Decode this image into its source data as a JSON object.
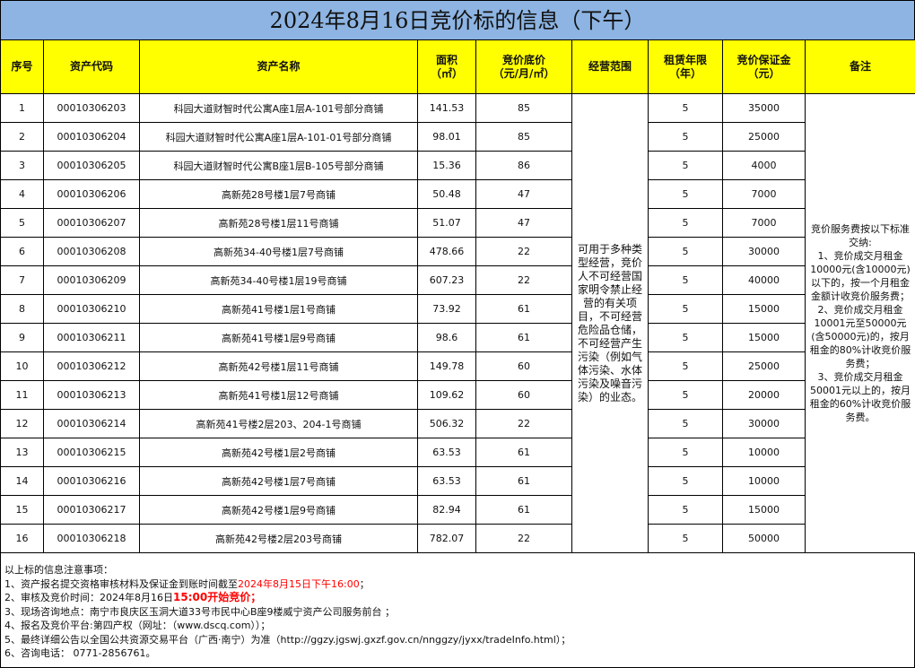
{
  "title": "2024年8月16日竞价标的信息（下午）",
  "headers": {
    "no": "序号",
    "code": "资产代码",
    "name": "资产名称",
    "area": "面积\n（㎡）",
    "price": "竞价底价\n（元/月/㎡）",
    "scope": "经营范围",
    "term": "租赁年限\n（年）",
    "deposit": "竞价保证金\n（元）",
    "remark": "备注"
  },
  "rows": [
    {
      "no": "1",
      "code": "00010306203",
      "name": "科园大道财智时代公寓A座1层A-101号部分商铺",
      "area": "141.53",
      "price": "85",
      "term": "5",
      "deposit": "35000"
    },
    {
      "no": "2",
      "code": "00010306204",
      "name": "科园大道财智时代公寓A座1层A-101-01号部分商铺",
      "area": "98.01",
      "price": "85",
      "term": "5",
      "deposit": "25000"
    },
    {
      "no": "3",
      "code": "00010306205",
      "name": "科园大道财智时代公寓B座1层B-105号部分商铺",
      "area": "15.36",
      "price": "86",
      "term": "5",
      "deposit": "4000"
    },
    {
      "no": "4",
      "code": "00010306206",
      "name": "高新苑28号楼1层7号商铺",
      "area": "50.48",
      "price": "47",
      "term": "5",
      "deposit": "7000"
    },
    {
      "no": "5",
      "code": "00010306207",
      "name": "高新苑28号楼1层11号商铺",
      "area": "51.07",
      "price": "47",
      "term": "5",
      "deposit": "7000"
    },
    {
      "no": "6",
      "code": "00010306208",
      "name": "高新苑34-40号楼1层7号商铺",
      "area": "478.66",
      "price": "22",
      "term": "5",
      "deposit": "30000"
    },
    {
      "no": "7",
      "code": "00010306209",
      "name": "高新苑34-40号楼1层19号商铺",
      "area": "607.23",
      "price": "22",
      "term": "5",
      "deposit": "40000"
    },
    {
      "no": "8",
      "code": "00010306210",
      "name": "高新苑41号楼1层1号商铺",
      "area": "73.92",
      "price": "61",
      "term": "5",
      "deposit": "15000"
    },
    {
      "no": "9",
      "code": "00010306211",
      "name": "高新苑41号楼1层9号商铺",
      "area": "98.6",
      "price": "61",
      "term": "5",
      "deposit": "15000"
    },
    {
      "no": "10",
      "code": "00010306212",
      "name": "高新苑42号楼1层11号商铺",
      "area": "149.78",
      "price": "60",
      "term": "5",
      "deposit": "25000"
    },
    {
      "no": "11",
      "code": "00010306213",
      "name": "高新苑41号楼1层12号商铺",
      "area": "109.62",
      "price": "60",
      "term": "5",
      "deposit": "20000"
    },
    {
      "no": "12",
      "code": "00010306214",
      "name": "高新苑41号楼2层203、204-1号商铺",
      "area": "506.32",
      "price": "22",
      "term": "5",
      "deposit": "30000"
    },
    {
      "no": "13",
      "code": "00010306215",
      "name": "高新苑42号楼1层2号商铺",
      "area": "63.53",
      "price": "61",
      "term": "5",
      "deposit": "10000"
    },
    {
      "no": "14",
      "code": "00010306216",
      "name": "高新苑42号楼1层7号商铺",
      "area": "63.53",
      "price": "61",
      "term": "5",
      "deposit": "10000"
    },
    {
      "no": "15",
      "code": "00010306217",
      "name": "高新苑42号楼1层9号商铺",
      "area": "82.94",
      "price": "61",
      "term": "5",
      "deposit": "15000"
    },
    {
      "no": "16",
      "code": "00010306218",
      "name": "高新苑42号楼2层203号商铺",
      "area": "782.07",
      "price": "22",
      "term": "5",
      "deposit": "50000"
    }
  ],
  "scope_text": "可用于多种类型经营，竞价人不可经营国家明令禁止经营的有关项目，不可经营危险品仓储，不可经营产生污染（例如气体污染、水体污染及噪音污染）的业态。",
  "remark_text": "竞价服务费按以下标准交纳:\n1、竞价成交月租金10000元(含10000元)以下的，按一个月租金金额计收竞价服务费；\n2、竞价成交月租金10001元至50000元(含50000元)的，按月租金的80%计收竞价服务费；\n3、竞价成交月租金50001元以上的，按月租金的60%计收竞价服务费。",
  "notes": {
    "heading": "以上标的信息注意事项：",
    "n1_prefix": "1、资产报名提交资格审核材料及保证金到账时间截至",
    "n1_red": "2024年8月15日下午16:00",
    "n1_suffix": "；",
    "n2_prefix": "2、审核及竞价时间：2024年8月16日",
    "n2_red": "15:00开始竞价；",
    "n3": "3、现场咨询地点：南宁市良庆区玉洞大道33号市民中心B座9楼威宁资产公司服务前台 ；",
    "n4": "4、报名及竞价平台:第四产权（网址：（www.dscq.com））；",
    "n5": "5、最终详细公告以全国公共资源交易平台（广西·南宁）为准（http://ggzy.jgswj.gxzf.gov.cn/nnggzy/jyxx/tradeInfo.html）；",
    "n6": "6、咨询电话： 0771-2856761。"
  },
  "colors": {
    "title_bg": "#8db4e2",
    "header_bg": "#ffff00",
    "highlight": "#ff0000"
  }
}
